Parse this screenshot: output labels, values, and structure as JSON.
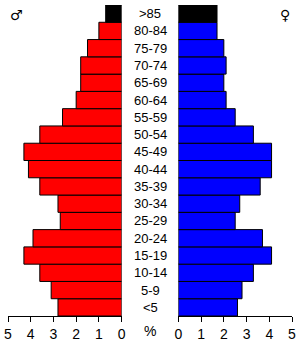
{
  "chart_data": [
    {
      "type": "bar",
      "orientation": "horizontal",
      "title": "♂",
      "xlabel": "%",
      "categories": [
        "<5",
        "5-9",
        "10-14",
        "15-19",
        "20-24",
        "25-29",
        "30-34",
        "35-39",
        "40-44",
        "45-49",
        "50-54",
        "55-59",
        "60-64",
        "65-69",
        "70-74",
        "75-79",
        "80-84",
        ">85"
      ],
      "values": [
        2.8,
        3.1,
        3.6,
        4.3,
        3.9,
        2.7,
        2.8,
        3.6,
        4.1,
        4.3,
        3.6,
        2.6,
        2.0,
        1.8,
        1.8,
        1.5,
        1.0,
        0.7
      ],
      "colors": [
        "#ff0000",
        "#ff0000",
        "#ff0000",
        "#ff0000",
        "#ff0000",
        "#ff0000",
        "#ff0000",
        "#ff0000",
        "#ff0000",
        "#ff0000",
        "#ff0000",
        "#ff0000",
        "#ff0000",
        "#ff0000",
        "#ff0000",
        "#ff0000",
        "#ff0000",
        "#000000"
      ],
      "xlim": [
        5,
        0
      ],
      "xticks": [
        5,
        4,
        3,
        2,
        1,
        0
      ]
    },
    {
      "type": "bar",
      "orientation": "horizontal",
      "title": "♀",
      "tick_labels": "x",
      "categories": [
        "<5",
        "5-9",
        "10-14",
        "15-19",
        "20-24",
        "25-29",
        "30-34",
        "35-39",
        "40-44",
        "45-49",
        "50-54",
        "55-59",
        "60-64",
        "65-69",
        "70-74",
        "75-79",
        "80-84",
        ">85"
      ],
      "values": [
        2.6,
        2.8,
        3.3,
        4.1,
        3.7,
        2.5,
        2.7,
        3.6,
        4.1,
        4.1,
        3.3,
        2.5,
        2.1,
        2.0,
        2.1,
        2.0,
        1.7,
        1.7
      ],
      "colors": [
        "#0000ff",
        "#0000ff",
        "#0000ff",
        "#0000ff",
        "#0000ff",
        "#0000ff",
        "#0000ff",
        "#0000ff",
        "#0000ff",
        "#0000ff",
        "#0000ff",
        "#0000ff",
        "#0000ff",
        "#0000ff",
        "#0000ff",
        "#0000ff",
        "#0000ff",
        "#000000"
      ],
      "xlim": [
        0,
        5
      ],
      "xticks": [
        0,
        1,
        2,
        3,
        4,
        5
      ]
    }
  ]
}
